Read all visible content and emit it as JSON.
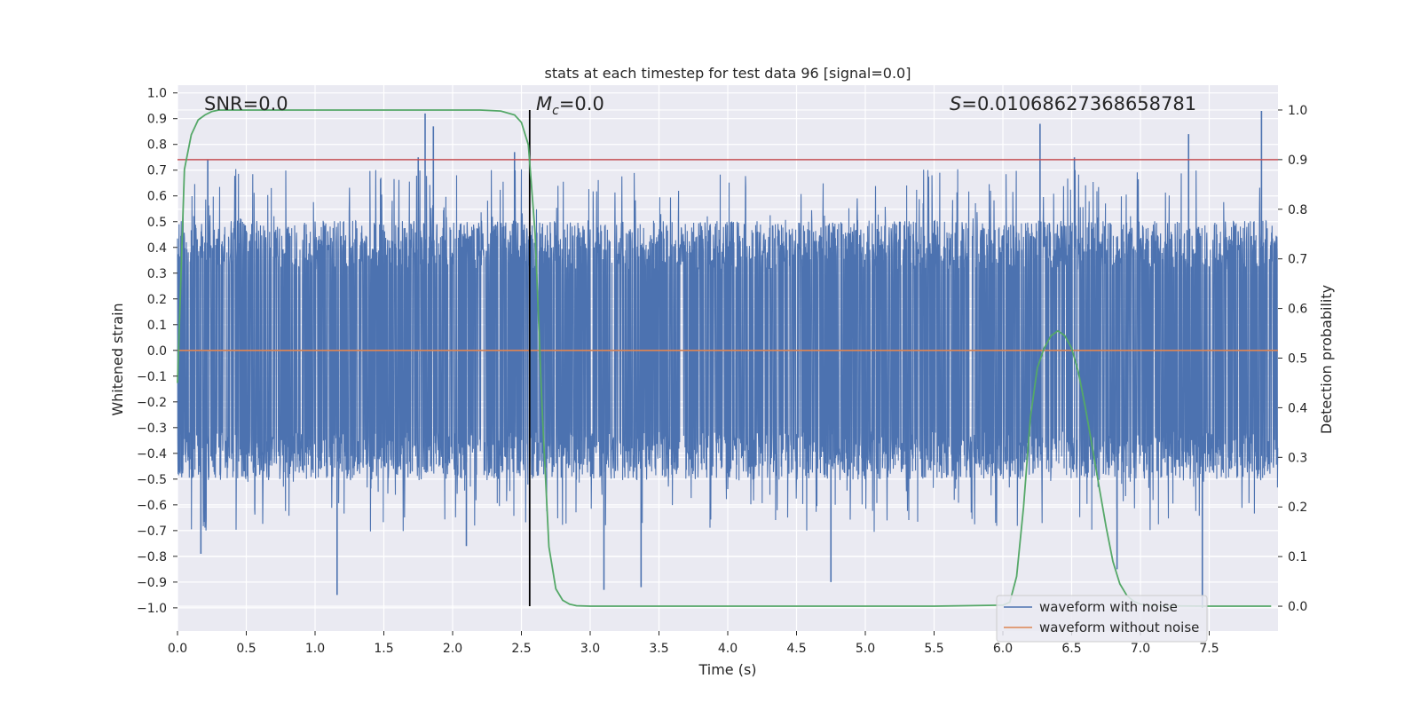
{
  "chart_data": {
    "type": "line",
    "title": "stats at each timestep for test data 96 [signal=0.0]",
    "xlabel": "Time (s)",
    "ylabel": "Whitened strain",
    "y2label": "Detection probability",
    "xlim": [
      0.0,
      8.0
    ],
    "ylim": [
      -1.09,
      1.03
    ],
    "y2lim": [
      -0.05,
      1.05
    ],
    "x_ticks": [
      0.0,
      0.5,
      1.0,
      1.5,
      2.0,
      2.5,
      3.0,
      3.5,
      4.0,
      4.5,
      5.0,
      5.5,
      6.0,
      6.5,
      7.0,
      7.5
    ],
    "x_tick_labels": [
      "0.0",
      "0.5",
      "1.0",
      "1.5",
      "2.0",
      "2.5",
      "3.0",
      "3.5",
      "4.0",
      "4.5",
      "5.0",
      "5.5",
      "6.0",
      "6.5",
      "7.0",
      "7.5"
    ],
    "y_ticks": [
      1.0,
      0.9,
      0.8,
      0.7,
      0.6,
      0.5,
      0.4,
      0.3,
      0.2,
      0.1,
      0.0,
      -0.1,
      -0.2,
      -0.3,
      -0.4,
      -0.5,
      -0.6,
      -0.7,
      -0.8,
      -0.9,
      -1.0
    ],
    "y_tick_labels": [
      "1.0",
      "0.9",
      "0.8",
      "0.7",
      "0.6",
      "0.5",
      "0.4",
      "0.3",
      "0.2",
      "0.1",
      "0.0",
      "−0.1",
      "−0.2",
      "−0.3",
      "−0.4",
      "−0.5",
      "−0.6",
      "−0.7",
      "−0.8",
      "−0.9",
      "−1.0"
    ],
    "y2_ticks": [
      0.0,
      0.1,
      0.2,
      0.3,
      0.4,
      0.5,
      0.6,
      0.7,
      0.8,
      0.9,
      1.0
    ],
    "y2_tick_labels": [
      "0.0",
      "0.1",
      "0.2",
      "0.3",
      "0.4",
      "0.5",
      "0.6",
      "0.7",
      "0.8",
      "0.9",
      "1.0"
    ],
    "series": [
      {
        "name": "waveform with noise",
        "color": "#4c72b0",
        "sample_rate_hz": 2048,
        "envelope_upper_typical": 0.42,
        "envelope_lower_typical": -0.42,
        "notable_peaks": [
          [
            0.22,
            0.74
          ],
          [
            1.75,
            0.75
          ],
          [
            1.8,
            0.92
          ],
          [
            1.86,
            0.87
          ],
          [
            2.45,
            0.77
          ],
          [
            6.27,
            0.88
          ],
          [
            6.52,
            0.75
          ],
          [
            7.35,
            0.84
          ],
          [
            7.88,
            0.93
          ]
        ],
        "notable_troughs": [
          [
            0.17,
            -0.79
          ],
          [
            1.16,
            -0.95
          ],
          [
            2.1,
            -0.76
          ],
          [
            3.1,
            -0.93
          ],
          [
            3.37,
            -0.92
          ],
          [
            4.75,
            -0.9
          ],
          [
            6.83,
            -0.85
          ],
          [
            7.45,
            -1.0
          ]
        ]
      },
      {
        "name": "waveform without noise",
        "color": "#dd8452",
        "x": [
          0.0,
          8.0
        ],
        "values": [
          0.0,
          0.0
        ]
      },
      {
        "name": "detection probability",
        "color": "#55a868",
        "axis": "right",
        "x": [
          0.0,
          0.05,
          0.1,
          0.15,
          0.2,
          0.25,
          0.3,
          0.35,
          0.4,
          0.6,
          1.0,
          1.5,
          2.0,
          2.2,
          2.35,
          2.45,
          2.5,
          2.55,
          2.6,
          2.65,
          2.7,
          2.75,
          2.8,
          2.85,
          2.9,
          3.0,
          3.5,
          4.5,
          5.5,
          6.0,
          6.05,
          6.1,
          6.15,
          6.2,
          6.25,
          6.3,
          6.35,
          6.4,
          6.45,
          6.5,
          6.55,
          6.6,
          6.65,
          6.7,
          6.75,
          6.8,
          6.85,
          6.9,
          6.95,
          7.0,
          7.05,
          7.1,
          7.5,
          7.95
        ],
        "values": [
          0.45,
          0.88,
          0.95,
          0.98,
          0.99,
          0.997,
          1.0,
          1.0,
          1.0,
          1.0,
          1.0,
          1.0,
          1.0,
          1.0,
          0.998,
          0.99,
          0.975,
          0.93,
          0.75,
          0.4,
          0.12,
          0.035,
          0.012,
          0.004,
          0.001,
          0.0,
          0.0,
          0.0,
          0.0,
          0.002,
          0.008,
          0.06,
          0.2,
          0.38,
          0.48,
          0.52,
          0.545,
          0.555,
          0.545,
          0.52,
          0.47,
          0.4,
          0.32,
          0.24,
          0.16,
          0.09,
          0.045,
          0.022,
          0.01,
          0.004,
          0.002,
          0.001,
          0.0,
          0.0
        ]
      }
    ],
    "hlines": [
      {
        "name": "threshold",
        "axis": "right",
        "value": 0.9,
        "color": "#c44e52"
      }
    ],
    "vlines": [
      {
        "name": "marker",
        "x": 2.56,
        "y2_range": [
          0.0,
          1.0
        ],
        "color": "#000000"
      }
    ],
    "annotations": {
      "snr": "SNR=0.0",
      "mc_symbol": "M",
      "mc_sub": "c",
      "mc_value": "=0.0",
      "s_symbol": "S",
      "s_value": "=0.01068627368658781"
    },
    "legend": {
      "placement": "lower-right",
      "entries": [
        "waveform with noise",
        "waveform without noise"
      ]
    },
    "grid": true,
    "background": "#eaeaf2"
  }
}
